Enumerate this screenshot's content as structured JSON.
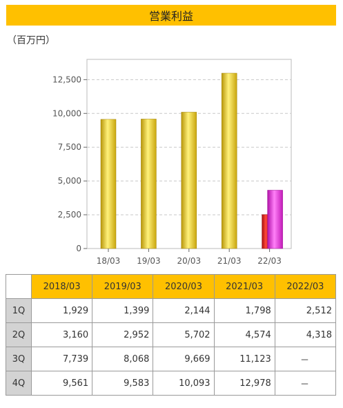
{
  "title": "営業利益",
  "unit": "（百万円）",
  "chart_data": {
    "type": "bar",
    "categories": [
      "18/03",
      "19/03",
      "20/03",
      "21/03",
      "22/03"
    ],
    "series": [
      {
        "values": [
          9561,
          9583,
          10093,
          12978,
          null
        ]
      },
      {
        "values": [
          null,
          null,
          null,
          null,
          2512
        ]
      },
      {
        "values": [
          null,
          null,
          null,
          null,
          4318
        ]
      }
    ],
    "ylim": [
      0,
      14000
    ],
    "yticks": [
      0,
      2500,
      5000,
      7500,
      10000,
      12500
    ],
    "ytick_labels": [
      "0",
      "2,500",
      "5,000",
      "7,500",
      "10,000",
      "12,500"
    ],
    "grid": true
  },
  "table": {
    "headers": [
      "2018/03",
      "2019/03",
      "2020/03",
      "2021/03",
      "2022/03"
    ],
    "rows": [
      {
        "label": "1Q",
        "cells": [
          "1,929",
          "1,399",
          "2,144",
          "1,798",
          "2,512"
        ]
      },
      {
        "label": "2Q",
        "cells": [
          "3,160",
          "2,952",
          "5,702",
          "4,574",
          "4,318"
        ]
      },
      {
        "label": "3Q",
        "cells": [
          "7,739",
          "8,068",
          "9,669",
          "11,123",
          "－"
        ]
      },
      {
        "label": "4Q",
        "cells": [
          "9,561",
          "9,583",
          "10,093",
          "12,978",
          "－"
        ]
      }
    ]
  },
  "colors": {
    "header": "#ffc000",
    "bar_gold": "#e8c619",
    "bar_red": "#e0201c",
    "bar_magenta": "#ee22dd"
  }
}
